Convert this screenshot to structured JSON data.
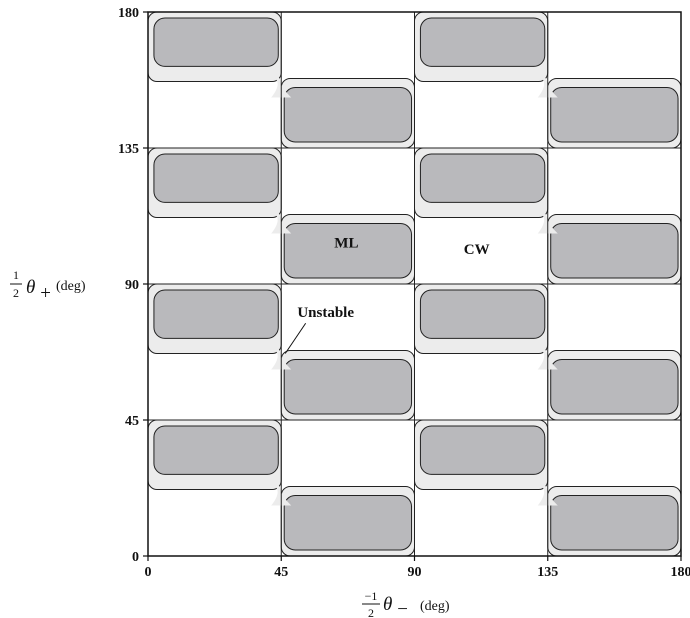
{
  "chart_data": {
    "type": "heatmap",
    "title": "",
    "xlabel": {
      "fraction_num": "−1",
      "fraction_den": "2",
      "symbol": "θ",
      "subscript": "−",
      "unit": "(deg)"
    },
    "ylabel": {
      "fraction_num": "1",
      "fraction_den": "2",
      "symbol": "θ",
      "subscript": "+",
      "unit": "(deg)"
    },
    "xlim": [
      0,
      180
    ],
    "ylim": [
      0,
      180
    ],
    "x_ticks": [
      "0",
      "45",
      "90",
      "135",
      "180"
    ],
    "y_ticks": [
      "0",
      "45",
      "90",
      "135",
      "180"
    ],
    "grid_lines_at": [
      45,
      90,
      135
    ],
    "colors": {
      "light_region": "#ececec",
      "dark_region": "#b9b9bc",
      "outline": "#222222"
    },
    "regions": [
      {
        "name": "upper-left",
        "outer": [
          0,
          45,
          22,
          45
        ],
        "inner": [
          2,
          44,
          27,
          43
        ],
        "period": 45,
        "columns": [
          0,
          90
        ]
      },
      {
        "name": "lower-right",
        "outer": [
          45,
          90,
          0,
          23
        ],
        "inner": [
          46,
          89,
          2,
          20
        ],
        "period": 45,
        "columns": [
          0,
          90
        ]
      }
    ],
    "annotations": [
      {
        "text": "ML",
        "x": 67,
        "y": 102
      },
      {
        "text": "CW",
        "x": 111,
        "y": 100
      },
      {
        "text": "Unstable",
        "x": 60,
        "y": 79,
        "arrow_to": [
          45,
          67
        ]
      }
    ]
  }
}
